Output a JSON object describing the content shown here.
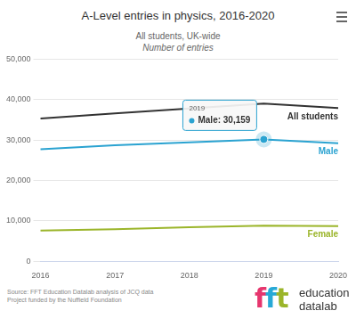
{
  "chart_data": {
    "type": "line",
    "title": "A-Level entries in physics, 2016-2020",
    "subtitle": "All students, UK-wide",
    "y_label": "Number of entries",
    "categories": [
      "2016",
      "2017",
      "2018",
      "2019",
      "2020"
    ],
    "series": [
      {
        "name": "All students",
        "color": "#333333",
        "values": [
          35300,
          36600,
          37800,
          39000,
          37900
        ]
      },
      {
        "name": "Male",
        "color": "#2ba3d1",
        "values": [
          27700,
          28700,
          29400,
          30159,
          29200
        ]
      },
      {
        "name": "Female",
        "color": "#9bb52a",
        "values": [
          7600,
          7900,
          8400,
          8800,
          8700
        ]
      }
    ],
    "ylim": [
      0,
      50000
    ],
    "yticks": [
      0,
      {
        "value": 10000,
        "label": "10,000"
      },
      {
        "value": 20000,
        "label": "20,000"
      },
      {
        "value": 30000,
        "label": "30,000"
      },
      {
        "value": 40000,
        "label": "40,000"
      },
      {
        "value": 50000,
        "label": "50,000"
      }
    ],
    "grid": true,
    "marker": "none",
    "annotations": [
      {
        "category": "2019",
        "series": "Male",
        "text": "Male: 30,159"
      }
    ],
    "source": "Source: FFT Education Datalab analysis of JCQ data",
    "credit": "Project funded by the Nuffield Foundation",
    "logo": [
      "fft",
      "education",
      "datalab"
    ]
  }
}
